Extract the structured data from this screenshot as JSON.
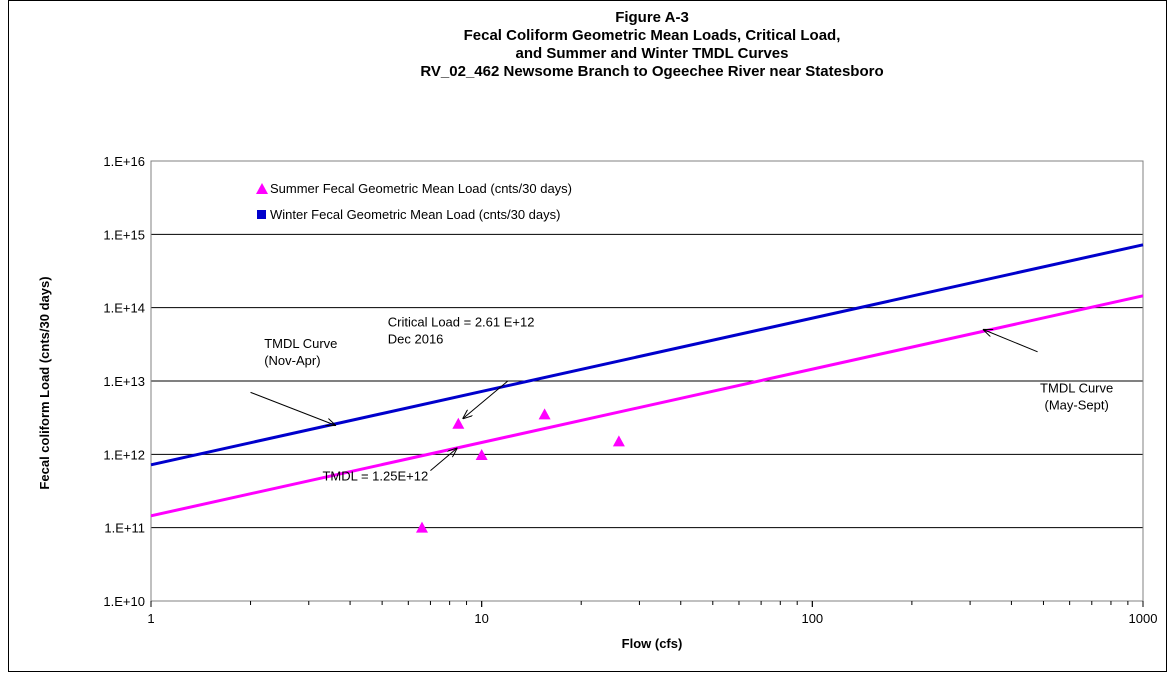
{
  "chart_data": {
    "type": "scatter",
    "title_lines": [
      "Figure A-3",
      "Fecal Coliform Geometric Mean Loads,  Critical Load,",
      "and Summer and Winter TMDL Curves",
      "RV_02_462  Newsome Branch to Ogeechee River near Statesboro"
    ],
    "xlabel": "Flow    (cfs)",
    "ylabel": "Fecal coliform Load  (cnts/30 days)",
    "x_scale": "log",
    "y_scale": "log",
    "xlim": [
      1,
      1000
    ],
    "ylim": [
      10000000000.0,
      1e+16
    ],
    "x_ticks": [
      {
        "value": 1,
        "label": "1"
      },
      {
        "value": 10,
        "label": "10"
      },
      {
        "value": 100,
        "label": "100"
      },
      {
        "value": 1000,
        "label": "1000"
      }
    ],
    "y_ticks": [
      {
        "value": 10000000000.0,
        "label": "1.E+10"
      },
      {
        "value": 100000000000.0,
        "label": "1.E+11"
      },
      {
        "value": 1000000000000.0,
        "label": "1.E+12"
      },
      {
        "value": 10000000000000.0,
        "label": "1.E+13"
      },
      {
        "value": 100000000000000.0,
        "label": "1.E+14"
      },
      {
        "value": 1000000000000000.0,
        "label": "1.E+15"
      },
      {
        "value": 1e+16,
        "label": "1.E+16"
      }
    ],
    "grid": "horizontal",
    "legend_position": "top-left",
    "series": [
      {
        "name": "Summer Fecal Geometric Mean Load (cnts/30 days)",
        "kind": "scatter",
        "marker": "triangle",
        "color": "#ff00ff",
        "points": [
          {
            "x": 6.6,
            "y": 100000000000.0
          },
          {
            "x": 8.5,
            "y": 2610000000000.0
          },
          {
            "x": 10.0,
            "y": 980000000000.0
          },
          {
            "x": 15.5,
            "y": 3500000000000.0
          },
          {
            "x": 26.0,
            "y": 1500000000000.0
          }
        ]
      },
      {
        "name": "Winter Fecal Geometric Mean Load (cnts/30 days)",
        "kind": "scatter",
        "marker": "square",
        "color": "#0000cc",
        "points": []
      },
      {
        "name": "",
        "kind": "line",
        "color": "#ff00ff",
        "points": [
          {
            "x": 1,
            "y": 145000000000.0
          },
          {
            "x": 1000,
            "y": 145000000000000.0
          }
        ]
      },
      {
        "name": "",
        "kind": "line",
        "color": "#0000cc",
        "points": [
          {
            "x": 1,
            "y": 720000000000.0
          },
          {
            "x": 1000,
            "y": 720000000000000.0
          }
        ]
      }
    ],
    "annotations": [
      {
        "lines": [
          "TMDL Curve",
          "(Nov-Apr)"
        ],
        "anchor": "left",
        "text_at": {
          "x": 2.2,
          "y": 28000000000000.0
        },
        "arrow_from": {
          "x": 2.0,
          "y": 7000000000000.0
        },
        "arrow_to": {
          "x": 3.6,
          "y": 2500000000000.0
        }
      },
      {
        "lines": [
          "Critical Load = 2.61 E+12",
          "Dec 2016"
        ],
        "anchor": "left",
        "text_at": {
          "x": 5.2,
          "y": 55000000000000.0
        },
        "arrow_from": {
          "x": 12.0,
          "y": 10000000000000.0
        },
        "arrow_to": {
          "x": 8.8,
          "y": 3100000000000.0
        }
      },
      {
        "lines": [
          "TMDL = 1.25E+12"
        ],
        "anchor": "left",
        "text_at": {
          "x": 3.3,
          "y": 440000000000.0
        },
        "arrow_from": {
          "x": 7.0,
          "y": 600000000000.0
        },
        "arrow_to": {
          "x": 8.4,
          "y": 1200000000000.0
        }
      },
      {
        "lines": [
          "TMDL Curve",
          "(May-Sept)"
        ],
        "anchor": "middle",
        "text_at": {
          "x": 630,
          "y": 7000000000000.0
        },
        "arrow_from": {
          "x": 480,
          "y": 25000000000000.0
        },
        "arrow_to": {
          "x": 330,
          "y": 50000000000000.0
        }
      }
    ]
  }
}
